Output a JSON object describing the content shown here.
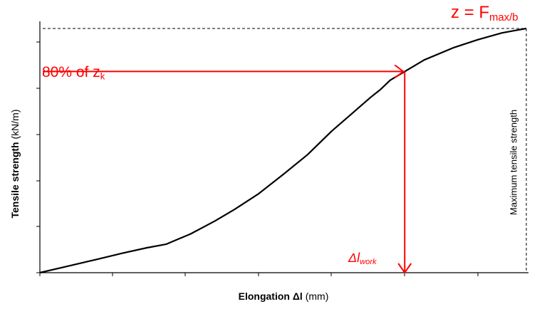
{
  "chart_data": {
    "type": "line",
    "xlabel_main": "Elongation Δl",
    "xlabel_unit": "(mm)",
    "ylabel_main": "Tensile strength",
    "ylabel_unit": "(kN/m)",
    "xlim": [
      0,
      100
    ],
    "ylim": [
      0,
      100
    ],
    "grid": false,
    "series": [
      {
        "x": [
          0,
          6,
          12,
          17,
          22,
          26,
          31,
          36,
          40,
          45,
          50,
          55,
          60,
          64,
          68,
          70,
          72,
          75,
          79,
          85,
          90,
          95,
          98,
          100
        ],
        "y": [
          0,
          2.8,
          5.6,
          8.0,
          10.2,
          11.7,
          15.9,
          21.2,
          25.9,
          32.4,
          40.2,
          48.3,
          58.0,
          64.9,
          71.8,
          75.0,
          78.8,
          82.4,
          87.1,
          92.1,
          95.4,
          98.2,
          99.3,
          100
        ]
      }
    ],
    "annotations": {
      "max": {
        "prefix": "z = F",
        "sub": "max/b",
        "x": 100,
        "y": 100,
        "vline_label": "Maximum tensile strength"
      },
      "pct": {
        "prefix": "80% of z",
        "sub": "k",
        "x": 75,
        "y": 82.4
      },
      "dl": {
        "prefix": "Δl",
        "sub": "work",
        "x": 75
      }
    },
    "colors": {
      "curve": "#000000",
      "annotation": "#ff0000",
      "axis": "#000000"
    }
  }
}
